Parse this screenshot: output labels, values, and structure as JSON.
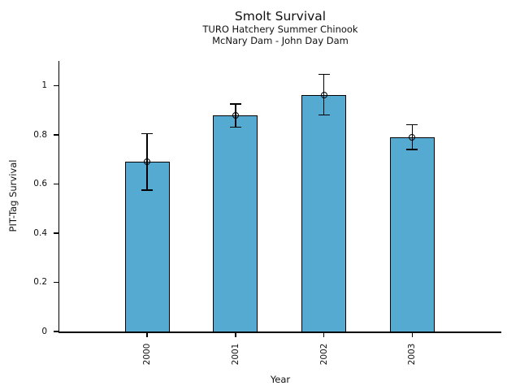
{
  "figure": {
    "title": "Smolt Survival",
    "subtitle_line1": "TURO Hatchery Summer Chinook",
    "subtitle_line2": "McNary Dam - John Day Dam",
    "xlabel": "Year",
    "ylabel": "PIT-Tag Survival"
  },
  "chart_data": {
    "type": "bar",
    "title": "Smolt Survival",
    "subtitle": [
      "TURO Hatchery Summer Chinook",
      "McNary Dam - John Day Dam"
    ],
    "xlabel": "Year",
    "ylabel": "PIT-Tag Survival",
    "categories": [
      "2000",
      "2001",
      "2002",
      "2003"
    ],
    "values": [
      0.69,
      0.88,
      0.96,
      0.79
    ],
    "error_low": [
      0.575,
      0.83,
      0.88,
      0.74
    ],
    "error_high": [
      0.805,
      0.925,
      1.045,
      0.84
    ],
    "error_marker": "open-circle",
    "ylim": [
      0,
      1.1
    ],
    "yticks": [
      0,
      0.2,
      0.4,
      0.6,
      0.8,
      1
    ],
    "ytick_labels": [
      "0",
      "0.2",
      "0.4",
      "0.6",
      "0.8",
      "1"
    ],
    "grid": false,
    "legend": null,
    "spines": [
      "left",
      "bottom"
    ],
    "xtick_label_rotation_deg": 90,
    "bar_color": "#55AAD2",
    "bar_edge_color": "#000000",
    "error_color": "#000000",
    "background_color": "#ffffff"
  }
}
